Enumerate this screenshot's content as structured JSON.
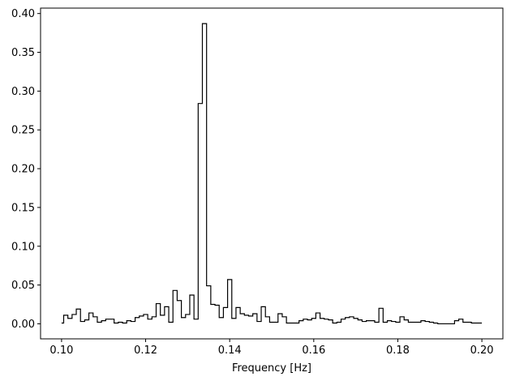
{
  "chart_data": {
    "type": "line",
    "style": "step",
    "title": "",
    "xlabel": "Frequency [Hz]",
    "ylabel": "",
    "xlim": [
      0.095,
      0.205
    ],
    "ylim": [
      -0.0194,
      0.407
    ],
    "grid": false,
    "legend": "none",
    "line_color": "#000000",
    "xticks": [
      {
        "value": 0.1,
        "label": "0.10"
      },
      {
        "value": 0.12,
        "label": "0.12"
      },
      {
        "value": 0.14,
        "label": "0.14"
      },
      {
        "value": 0.16,
        "label": "0.16"
      },
      {
        "value": 0.18,
        "label": "0.18"
      },
      {
        "value": 0.2,
        "label": "0.20"
      }
    ],
    "yticks": [
      {
        "value": 0.0,
        "label": "0.00"
      },
      {
        "value": 0.05,
        "label": "0.05"
      },
      {
        "value": 0.1,
        "label": "0.10"
      },
      {
        "value": 0.15,
        "label": "0.15"
      },
      {
        "value": 0.2,
        "label": "0.20"
      },
      {
        "value": 0.25,
        "label": "0.25"
      },
      {
        "value": 0.3,
        "label": "0.30"
      },
      {
        "value": 0.35,
        "label": "0.35"
      },
      {
        "value": 0.4,
        "label": "0.40"
      }
    ],
    "series": [
      {
        "x": [
          0.1,
          0.101,
          0.102,
          0.103,
          0.104,
          0.105,
          0.106,
          0.107,
          0.108,
          0.109,
          0.11,
          0.111,
          0.112,
          0.113,
          0.114,
          0.115,
          0.116,
          0.117,
          0.118,
          0.119,
          0.12,
          0.121,
          0.122,
          0.123,
          0.124,
          0.125,
          0.126,
          0.127,
          0.128,
          0.129,
          0.13,
          0.131,
          0.132,
          0.133,
          0.134,
          0.135,
          0.136,
          0.137,
          0.138,
          0.139,
          0.14,
          0.141,
          0.142,
          0.143,
          0.144,
          0.145,
          0.146,
          0.147,
          0.148,
          0.149,
          0.15,
          0.151,
          0.152,
          0.153,
          0.154,
          0.155,
          0.156,
          0.157,
          0.158,
          0.159,
          0.16,
          0.161,
          0.162,
          0.163,
          0.164,
          0.165,
          0.166,
          0.167,
          0.168,
          0.169,
          0.17,
          0.171,
          0.172,
          0.173,
          0.174,
          0.175,
          0.176,
          0.177,
          0.178,
          0.179,
          0.18,
          0.181,
          0.182,
          0.183,
          0.184,
          0.185,
          0.186,
          0.187,
          0.188,
          0.189,
          0.19,
          0.191,
          0.192,
          0.193,
          0.194,
          0.195,
          0.196,
          0.197,
          0.198,
          0.199,
          0.2
        ],
        "y": [
          0.001,
          0.011,
          0.007,
          0.012,
          0.019,
          0.003,
          0.005,
          0.014,
          0.009,
          0.002,
          0.004,
          0.006,
          0.006,
          0.001,
          0.002,
          0.001,
          0.004,
          0.003,
          0.008,
          0.01,
          0.012,
          0.006,
          0.009,
          0.026,
          0.011,
          0.022,
          0.002,
          0.043,
          0.03,
          0.008,
          0.012,
          0.037,
          0.006,
          0.284,
          0.387,
          0.049,
          0.025,
          0.024,
          0.008,
          0.021,
          0.057,
          0.007,
          0.021,
          0.013,
          0.011,
          0.01,
          0.013,
          0.003,
          0.022,
          0.009,
          0.002,
          0.002,
          0.013,
          0.009,
          0.001,
          0.001,
          0.001,
          0.004,
          0.006,
          0.005,
          0.007,
          0.014,
          0.007,
          0.006,
          0.005,
          0.001,
          0.002,
          0.006,
          0.008,
          0.009,
          0.007,
          0.005,
          0.003,
          0.004,
          0.004,
          0.002,
          0.02,
          0.002,
          0.004,
          0.003,
          0.002,
          0.009,
          0.005,
          0.002,
          0.002,
          0.002,
          0.004,
          0.003,
          0.002,
          0.001,
          0.0,
          0.0,
          0.0,
          0.0,
          0.004,
          0.006,
          0.002,
          0.002,
          0.001,
          0.001,
          0.001
        ]
      }
    ]
  }
}
